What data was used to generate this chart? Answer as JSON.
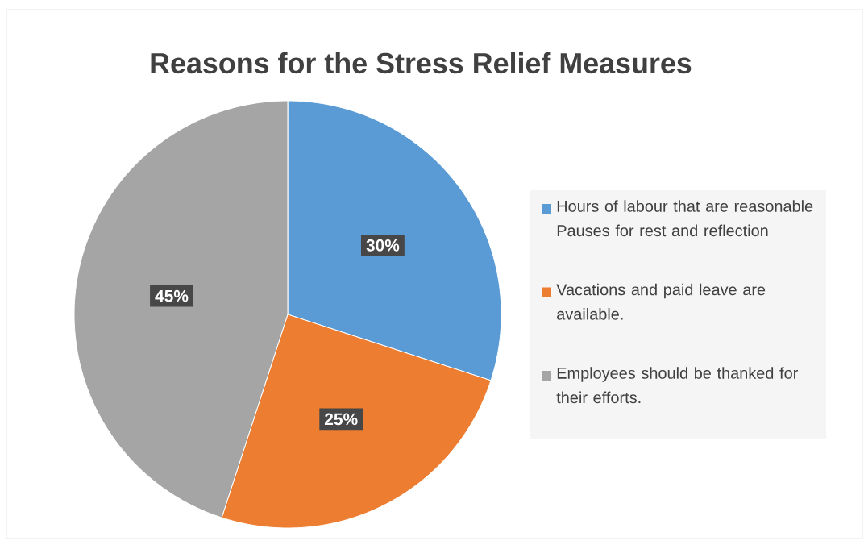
{
  "chart_data": {
    "type": "pie",
    "title": "Reasons for the Stress Relief Measures",
    "categories": [
      "Hours of labour that are reasonable Pauses for rest and reflection",
      "Vacations and paid leave are available.",
      "Employees should be thanked for their efforts."
    ],
    "values": [
      30,
      25,
      45
    ],
    "colors": [
      "#5b9bd5",
      "#ed7d31",
      "#a5a5a5"
    ],
    "value_labels": [
      "30%",
      "25%",
      "45%"
    ],
    "legend": "right"
  }
}
